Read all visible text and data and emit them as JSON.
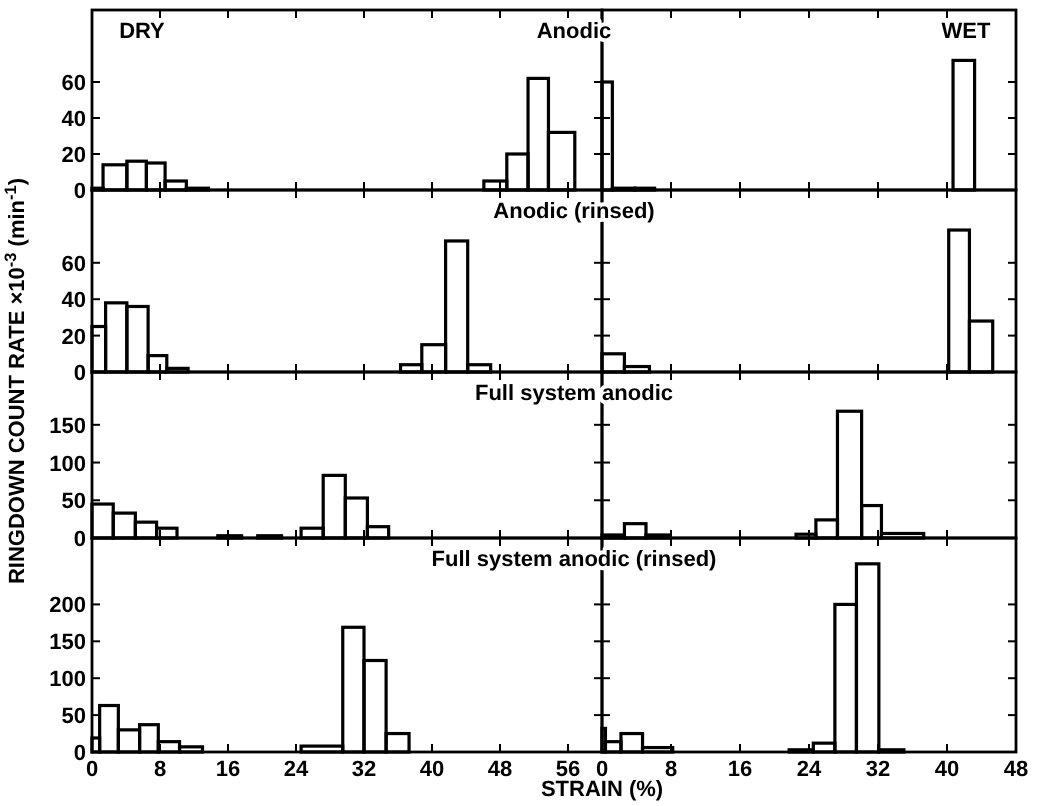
{
  "chart_data": [
    {
      "type": "histogram",
      "title": "Anodic",
      "annotations": [
        "DRY"
      ],
      "bins": [
        0,
        1.3,
        4.1,
        6.4,
        8.6,
        11.1,
        13.7,
        46.1,
        48.8,
        51.3,
        53.7,
        56.8
      ],
      "values": [
        1,
        14,
        16,
        15,
        5,
        1,
        0,
        5,
        20,
        62,
        32
      ],
      "color": "#000000",
      "xlim": [
        0,
        60
      ],
      "xticks": [
        0,
        8,
        16,
        24,
        32,
        40,
        48,
        56
      ],
      "ylim": [
        0,
        100
      ],
      "yticks": [
        0,
        20,
        40,
        60
      ],
      "tick_labels": "y"
    },
    {
      "type": "histogram",
      "annotations": [
        "WET"
      ],
      "bins": [
        0,
        1.2,
        3.8,
        6.1,
        40.7,
        43.2
      ],
      "values": [
        60,
        1,
        1,
        0,
        72
      ],
      "color": "#000000",
      "xlim": [
        0,
        48
      ],
      "xticks": [
        0,
        8,
        16,
        24,
        32,
        40,
        48
      ],
      "ylim": [
        0,
        100
      ],
      "yticks": [
        0,
        20,
        40,
        60
      ],
      "tick_labels": false
    },
    {
      "type": "histogram",
      "title": "Anodic (rinsed)",
      "ylabel": "RINGDOWN COUNT RATE ×10$^{-3}$ (min$^{-1}$)",
      "bins": [
        0,
        1.6,
        4.1,
        6.6,
        8.8,
        11.3,
        36.3,
        38.8,
        41.6,
        44.2,
        46.9
      ],
      "values": [
        25,
        38,
        36,
        9,
        2,
        0,
        4,
        15,
        72,
        4
      ],
      "color": "#000000",
      "xlim": [
        0,
        60
      ],
      "xticks": [
        0,
        8,
        16,
        24,
        32,
        40,
        48,
        56
      ],
      "ylim": [
        0,
        100
      ],
      "yticks": [
        0,
        20,
        40,
        60
      ],
      "tick_labels": "y"
    },
    {
      "type": "histogram",
      "bins": [
        0,
        2.6,
        5.5,
        40.2,
        42.6,
        45.3
      ],
      "values": [
        10,
        3,
        0,
        78,
        28
      ],
      "color": "#000000",
      "xlim": [
        0,
        48
      ],
      "xticks": [
        0,
        8,
        16,
        24,
        32,
        40,
        48
      ],
      "ylim": [
        0,
        100
      ],
      "yticks": [
        0,
        20,
        40,
        60
      ],
      "tick_labels": false
    },
    {
      "type": "histogram",
      "title": "Full system anodic",
      "bins": [
        0,
        2.5,
        5.1,
        7.6,
        10,
        14.8,
        17.6,
        19.5,
        22.3,
        24.6,
        27.2,
        29.8,
        32.4,
        34.9
      ],
      "values": [
        45,
        33,
        21,
        13,
        0,
        3,
        0,
        3,
        0,
        13,
        83,
        53,
        15
      ],
      "color": "#000000",
      "xlim": [
        0,
        60
      ],
      "xticks": [
        0,
        8,
        16,
        24,
        32,
        40,
        48,
        56
      ],
      "ylim": [
        0,
        220
      ],
      "yticks": [
        0,
        50,
        100,
        150
      ],
      "tick_labels": "y"
    },
    {
      "type": "histogram",
      "bins": [
        0,
        2.6,
        5.1,
        7.7,
        22.5,
        24.8,
        27.3,
        30.1,
        32.4,
        37.3
      ],
      "values": [
        4,
        19,
        4,
        0,
        5,
        24,
        168,
        43,
        6
      ],
      "color": "#000000",
      "xlim": [
        0,
        48
      ],
      "xticks": [
        0,
        8,
        16,
        24,
        32,
        40,
        48
      ],
      "ylim": [
        0,
        220
      ],
      "yticks": [
        0,
        50,
        100,
        150
      ],
      "tick_labels": false
    },
    {
      "type": "histogram",
      "title": "Full system anodic (rinsed)",
      "xlabel": "STRAIN (%)",
      "bins": [
        0,
        0.9,
        3.1,
        5.6,
        7.8,
        10.3,
        13,
        24.6,
        29.5,
        32,
        34.6,
        37.3
      ],
      "values": [
        19,
        63,
        30,
        37,
        14,
        7,
        0,
        8,
        169,
        124,
        25
      ],
      "color": "#000000",
      "xlim": [
        0,
        60
      ],
      "xticks": [
        0,
        8,
        16,
        24,
        32,
        40,
        48,
        56
      ],
      "ylim": [
        0,
        290
      ],
      "yticks": [
        0,
        50,
        100,
        150,
        200
      ]
    },
    {
      "type": "histogram",
      "bins": [
        0,
        0.4,
        2.2,
        4.7,
        8.2,
        21.7,
        24.5,
        27,
        29.5,
        32.1,
        35
      ],
      "values": [
        32,
        14,
        25,
        6,
        0,
        3,
        12,
        200,
        255,
        3
      ],
      "color": "#000000",
      "xlim": [
        0,
        48
      ],
      "xticks": [
        0,
        8,
        16,
        24,
        32,
        40,
        48
      ],
      "ylim": [
        0,
        290
      ],
      "yticks": [
        0,
        50,
        100,
        150,
        200
      ],
      "tick_labels": "x"
    }
  ]
}
